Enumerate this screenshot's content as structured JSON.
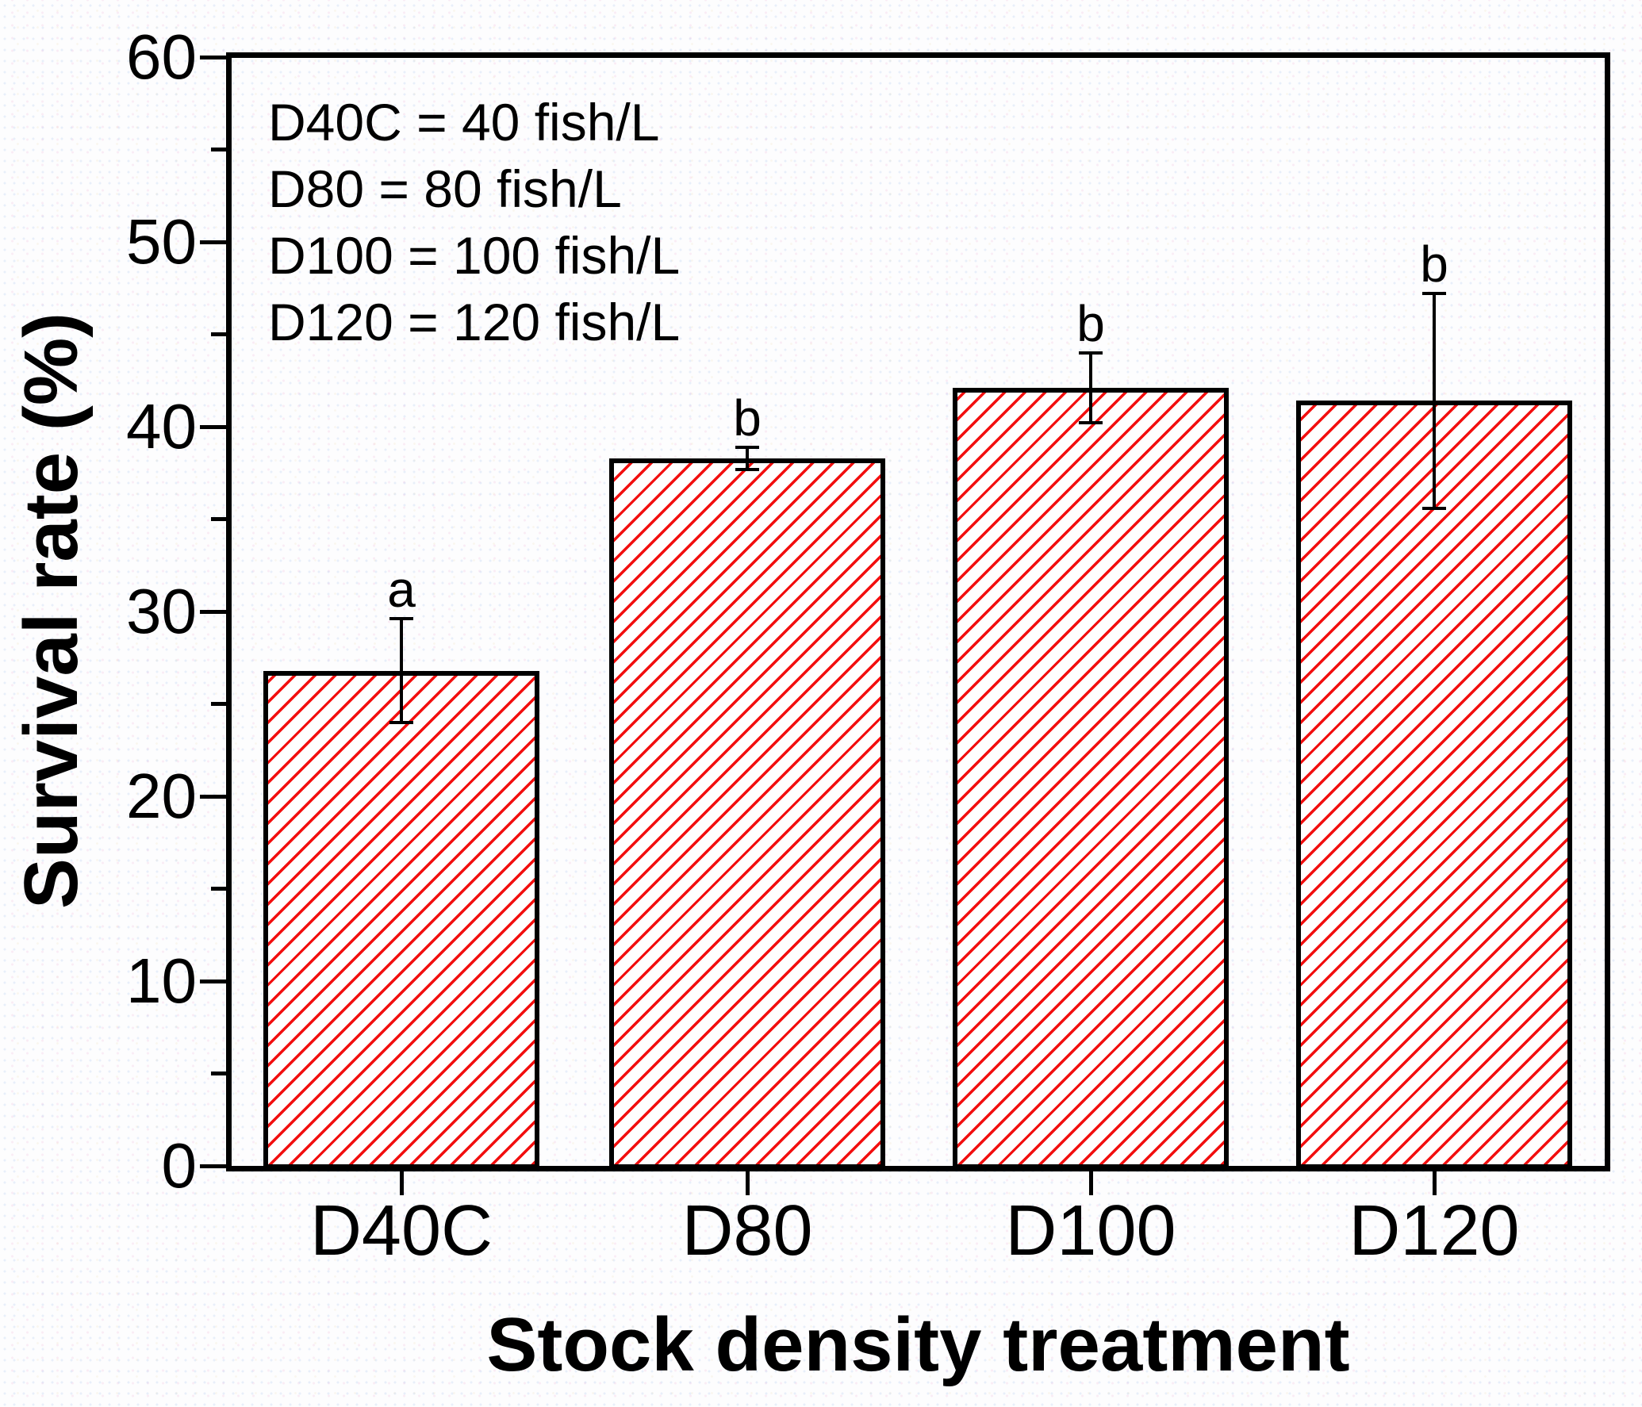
{
  "chart_data": {
    "type": "bar",
    "categories": [
      "D40C",
      "D80",
      "D100",
      "D120"
    ],
    "values": [
      26.8,
      38.3,
      42.1,
      41.4
    ],
    "error_bars": [
      2.8,
      0.6,
      1.9,
      5.8
    ],
    "sig_letters": [
      "a",
      "b",
      "b",
      "b"
    ],
    "xlabel": "Stock density treatment",
    "ylabel": "Survival rate (%)",
    "ylim": [
      0,
      60
    ],
    "y_major_ticks": [
      0,
      10,
      20,
      30,
      40,
      50,
      60
    ],
    "y_minor_ticks": [
      5,
      15,
      25,
      35,
      45,
      55
    ],
    "grid": false,
    "legend_position": "top-left-inside",
    "annotations": [
      "D40C = 40 fish/L",
      "D80 = 80 fish/L",
      "D100 = 100 fish/L",
      "D120 = 120 fish/L"
    ],
    "bar_hatch": "diagonal-forward-slash",
    "colors": {
      "hatch": "#f20f0f",
      "bar_fill": "#ffffff",
      "bar_border": "#000000",
      "axis": "#000000",
      "text": "#000000"
    }
  }
}
